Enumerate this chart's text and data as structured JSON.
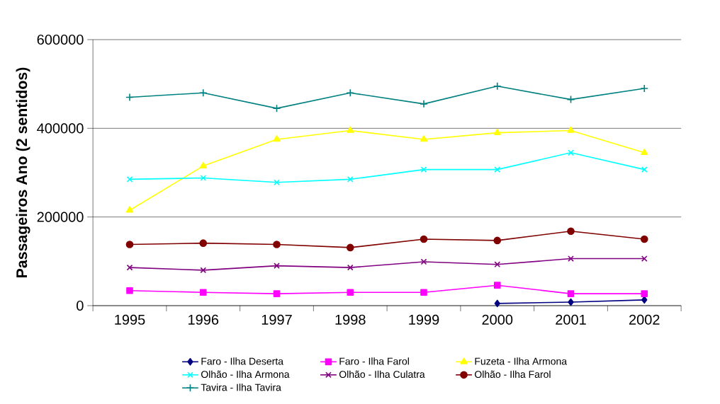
{
  "chart_data": {
    "type": "line",
    "ylabel": "Passageiros Ano (2 sentidos)",
    "categories": [
      "1995",
      "1996",
      "1997",
      "1998",
      "1999",
      "2000",
      "2001",
      "2002"
    ],
    "ylim": [
      0,
      600000
    ],
    "yticks": [
      0,
      200000,
      400000,
      600000
    ],
    "grid": "y",
    "legend": "bottom",
    "series": [
      {
        "name": "Faro - Ilha Deserta",
        "color": "#000080",
        "marker": "diamond",
        "values": [
          null,
          null,
          null,
          null,
          null,
          5000,
          8000,
          13000
        ]
      },
      {
        "name": "Faro - Ilha Farol",
        "color": "#ff00ff",
        "marker": "square",
        "values": [
          34000,
          30000,
          27000,
          30000,
          30000,
          46000,
          27000,
          27000
        ]
      },
      {
        "name": "Fuzeta - Ilha Armona",
        "color": "#ffff00",
        "marker": "triangle",
        "values": [
          215000,
          315000,
          375000,
          395000,
          375000,
          390000,
          395000,
          345000
        ]
      },
      {
        "name": "Olhão - Ilha Armona",
        "color": "#00ffff",
        "marker": "cross",
        "values": [
          285000,
          288000,
          278000,
          285000,
          307000,
          307000,
          345000,
          307000
        ]
      },
      {
        "name": "Olhão - Ilha Culatra",
        "color": "#800080",
        "marker": "cross",
        "values": [
          86000,
          80000,
          90000,
          86000,
          99000,
          93000,
          106000,
          106000
        ]
      },
      {
        "name": "Olhão - Ilha Farol",
        "color": "#800000",
        "marker": "circle",
        "values": [
          138000,
          141000,
          138000,
          131000,
          150000,
          147000,
          168000,
          150000
        ]
      },
      {
        "name": "Tavira - Ilha Tavira",
        "color": "#008080",
        "marker": "plus",
        "values": [
          470000,
          480000,
          445000,
          480000,
          455000,
          495000,
          465000,
          490000
        ]
      }
    ]
  }
}
